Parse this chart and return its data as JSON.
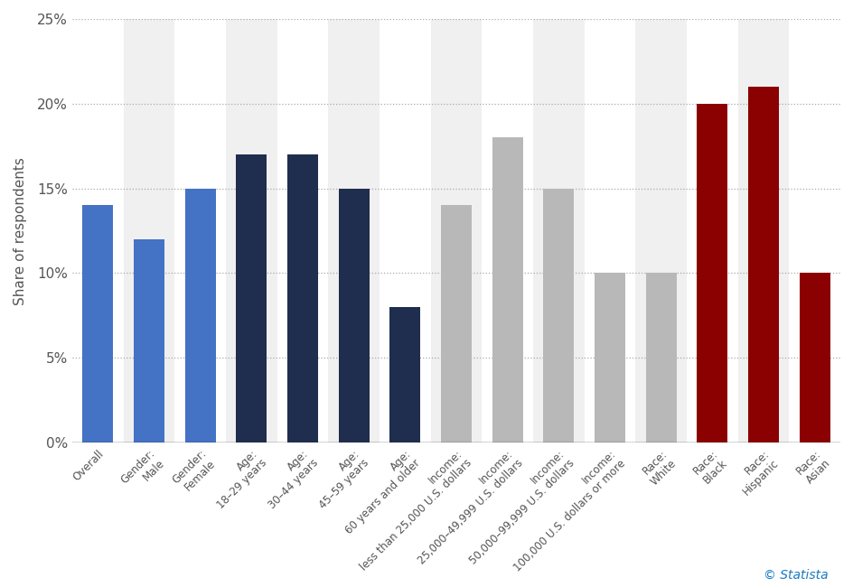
{
  "categories": [
    "Overall",
    "Gender:\nMale",
    "Gender:\nFemale",
    "Age:\n18–29 years",
    "Age:\n30–44 years",
    "Age:\n45–59 years",
    "Age:\n60 years and older",
    "Income:\nless than 25,000 U.S. dollars",
    "Income:\n25,000–49,999 U.S. dollars",
    "Income:\n50,000–99,999 U.S. dollars",
    "Income:\n100,000 U.S. dollars or more",
    "Race:\nWhite",
    "Race:\nBlack",
    "Race:\nHispanic",
    "Race:\nAsian"
  ],
  "values": [
    0.14,
    0.12,
    0.15,
    0.17,
    0.17,
    0.15,
    0.08,
    0.14,
    0.18,
    0.15,
    0.1,
    0.1,
    0.2,
    0.21,
    0.1
  ],
  "bar_colors": [
    "#4472c4",
    "#4472c4",
    "#4472c4",
    "#1f2d4e",
    "#1f2d4e",
    "#1f2d4e",
    "#1f2d4e",
    "#b8b8b8",
    "#b8b8b8",
    "#b8b8b8",
    "#b8b8b8",
    "#b8b8b8",
    "#8b0000",
    "#8b0000",
    "#8b0000"
  ],
  "band_colors": [
    "#ffffff",
    "#f0f0f0"
  ],
  "ylabel": "Share of respondents",
  "ylim": [
    0,
    0.25
  ],
  "yticks": [
    0.0,
    0.05,
    0.1,
    0.15,
    0.2,
    0.25
  ],
  "ytick_labels": [
    "0%",
    "5%",
    "10%",
    "15%",
    "20%",
    "25%"
  ],
  "background_color": "#ffffff",
  "plot_bg_color": "#ffffff",
  "grid_color": "#aaaaaa",
  "statista_color": "#1a7abf",
  "statista_text": "© Statista"
}
